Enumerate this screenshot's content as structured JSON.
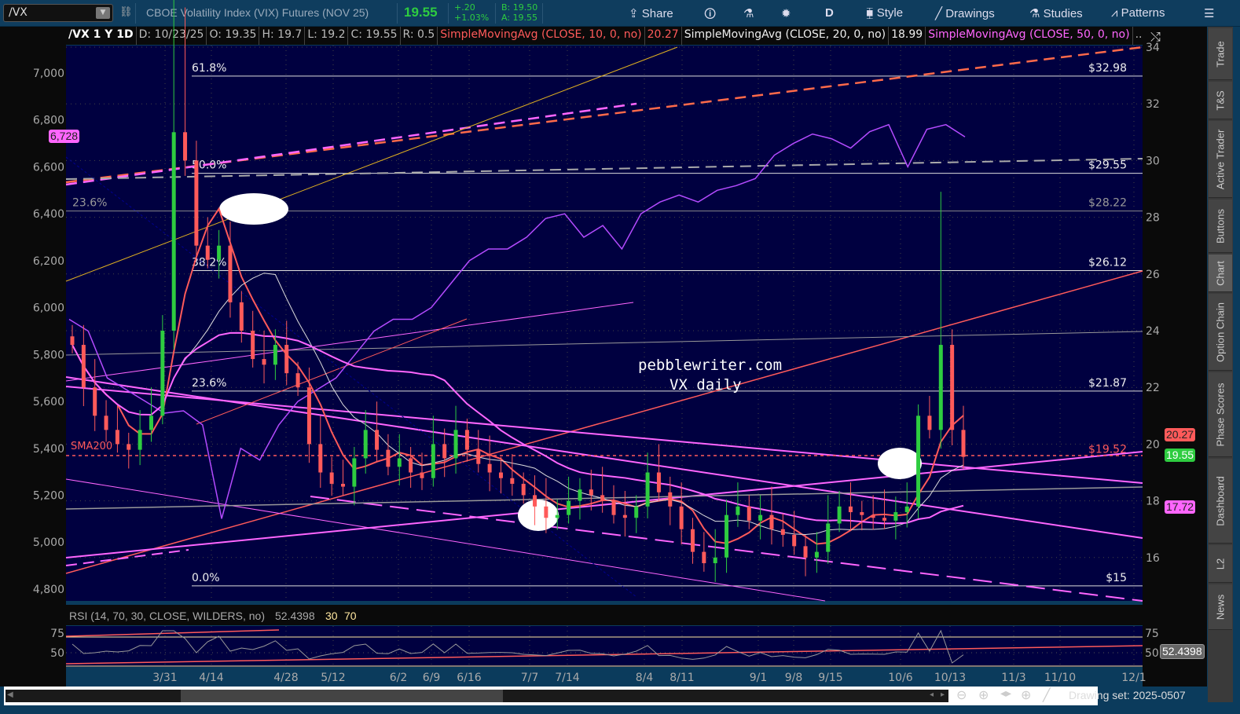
{
  "toolbar": {
    "symbol": "/VX",
    "title": "CBOE Volatility Index (VIX) Futures (NOV 25)",
    "last": "19.55",
    "change": "+.20",
    "change_pct": "+1.03%",
    "bid": "B: 19.50",
    "ask": "A: 19.55",
    "share": "Share",
    "period": "D",
    "style": "Style",
    "drawings": "Drawings",
    "studies": "Studies",
    "patterns": "Patterns"
  },
  "header": {
    "symbol_period": "/VX 1 Y 1D",
    "date": "D: 10/23/25",
    "open": "O: 19.35",
    "high": "H: 19.7",
    "low": "L: 19.2",
    "close": "C: 19.55",
    "range": "R: 0.5",
    "sma10": "SimpleMovingAvg (CLOSE, 10, 0, no)",
    "sma10_val": "20.27",
    "sma20": "SimpleMovingAvg (CLOSE, 20, 0, no)",
    "sma20_val": "18.99",
    "sma50": "SimpleMovingAvg (CLOSE, 50, 0, no)",
    "more": "..."
  },
  "rsi": {
    "label": "RSI (14, 70, 30, CLOSE, WILDERS, no)",
    "value": "52.4398",
    "low": "30",
    "high": "70",
    "ticks": [
      "75",
      "50"
    ]
  },
  "annotations": {
    "site": "pebblewriter.com",
    "subtitle": "VX daily",
    "sma200": "SMA200"
  },
  "fib_levels": [
    {
      "pct": "61.8%",
      "price": "$32.98",
      "value": 32.98
    },
    {
      "pct": "50.0%",
      "price": "$29.55",
      "value": 29.55
    },
    {
      "pct": "23.6%",
      "price": "$28.22",
      "value": 28.22
    },
    {
      "pct": "38.2%",
      "price": "$26.12",
      "value": 26.12
    },
    {
      "pct": "23.6%",
      "price": "$21.87",
      "value": 21.87
    },
    {
      "pct": "0.0%",
      "price": "$15",
      "value": 15
    }
  ],
  "marker_level": {
    "price": "$19.52",
    "value": 19.52
  },
  "price_tags": {
    "sma10": "20.27",
    "last": "19.55",
    "sma50": "17.72",
    "left_last": "6,728",
    "rsi": "52.4398"
  },
  "colors": {
    "background": "#000040",
    "up": "#2ecc40",
    "down": "#ff5a5a",
    "sma10": "#ff5a5a",
    "sma20": "#dddddd",
    "sma50": "#ff66ff",
    "spx": "#b44bff"
  },
  "footer": {
    "drawing_set": "Drawing set: 2025-0507"
  },
  "tabs": [
    "Trade",
    "T&S",
    "Active Trader",
    "Buttons",
    "Chart",
    "Option Chain",
    "Phase Scores",
    "Dashboard",
    "L2",
    "News"
  ],
  "chart_data": {
    "type": "candlestick",
    "right_axis": {
      "ticks": [
        "34",
        "32",
        "30",
        "28",
        "26",
        "24",
        "22",
        "20",
        "18",
        "16"
      ],
      "range": [
        14.6,
        34
      ]
    },
    "left_axis": {
      "ticks": [
        "7,000",
        "6,800",
        "6,600",
        "6,400",
        "6,200",
        "6,000",
        "5,800",
        "5,600",
        "5,400",
        "5,200",
        "5,000",
        "4,800"
      ],
      "range": [
        4760,
        7120
      ]
    },
    "x_ticks": [
      "3/31",
      "4/14",
      "4/28",
      "5/12",
      "6/2",
      "6/9",
      "6/16",
      "7/7",
      "7/14",
      "8/4",
      "8/11",
      "9/1",
      "9/8",
      "9/15",
      "10/6",
      "10/13",
      "11/3",
      "11/10",
      "12/1"
    ],
    "vx_closes": [
      23.5,
      22,
      21,
      20.5,
      20,
      19.8,
      20.5,
      21,
      24,
      31,
      30,
      27,
      26.5,
      27,
      25,
      24,
      23,
      22.8,
      23.5,
      22.5,
      22,
      20,
      19,
      18.6,
      18.5,
      19.5,
      20.5,
      19.8,
      19.2,
      19.5,
      19,
      18.8,
      20,
      19.5,
      20.5,
      19.8,
      19.3,
      19,
      18.8,
      18.6,
      18.2,
      17.8,
      17.4,
      17.5,
      18,
      18.4,
      18.2,
      18,
      17.5,
      17.4,
      17.8,
      19,
      18.3,
      17.8,
      17,
      16.2,
      15.8,
      16,
      17.5,
      17.8,
      17.3,
      17.5,
      17,
      16.8,
      16.4,
      16,
      16.2,
      17.2,
      17.8,
      17.6,
      17.5,
      17.4,
      17.3,
      17.6,
      17.8,
      21,
      20.5,
      23.5,
      20.5,
      19.55
    ],
    "spx_closes": [
      5950,
      5900,
      5700,
      5650,
      5600,
      5550,
      5560,
      5500,
      5100,
      5400,
      5350,
      5500,
      5600,
      5650,
      5700,
      5800,
      5900,
      5950,
      5950,
      6000,
      6100,
      6200,
      6250,
      6250,
      6300,
      6380,
      6400,
      6300,
      6350,
      6250,
      6400,
      6450,
      6480,
      6450,
      6500,
      6520,
      6550,
      6650,
      6700,
      6740,
      6720,
      6680,
      6750,
      6780,
      6600,
      6760,
      6780,
      6728
    ]
  }
}
